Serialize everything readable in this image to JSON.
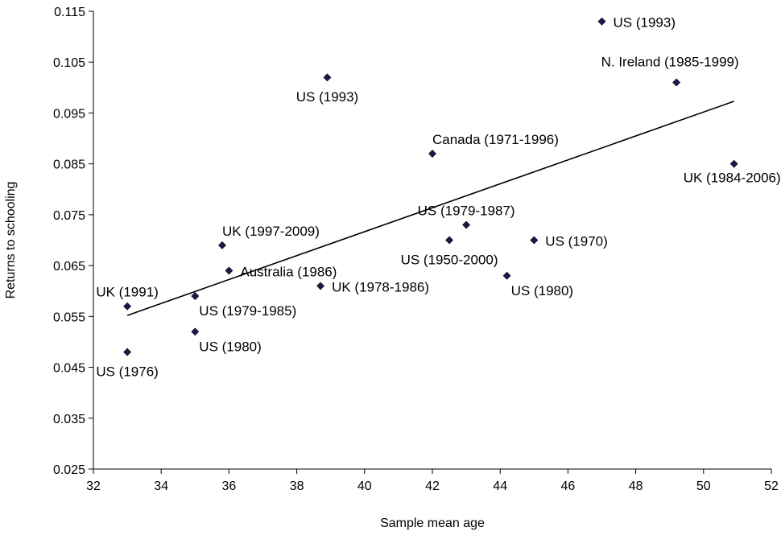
{
  "chart_data": {
    "type": "scatter",
    "xlabel": "Sample mean age",
    "ylabel": "Returns to schooling",
    "xlim": [
      32,
      52
    ],
    "ylim": [
      0.025,
      0.115
    ],
    "x_ticks": [
      32,
      34,
      36,
      38,
      40,
      42,
      44,
      46,
      48,
      50,
      52
    ],
    "x_tick_labels": [
      "32",
      "34",
      "36",
      "38",
      "40",
      "42",
      "44",
      "46",
      "48",
      "50",
      "52"
    ],
    "y_ticks": [
      0.025,
      0.035,
      0.045,
      0.055,
      0.065,
      0.075,
      0.085,
      0.095,
      0.105,
      0.115
    ],
    "y_tick_labels": [
      "0.025",
      "0.035",
      "0.045",
      "0.055",
      "0.065",
      "0.075",
      "0.085",
      "0.095",
      "0.105",
      "0.115"
    ],
    "grid": false,
    "colors": {
      "marker": "#1a1a4e",
      "trendline": "#000000",
      "axis": "#000000"
    },
    "points": [
      {
        "label": "US (1993)",
        "x": 47.0,
        "y": 0.113,
        "label_pos": "right"
      },
      {
        "label": "N. Ireland (1985-1999)",
        "x": 49.2,
        "y": 0.101,
        "label_pos": "above-left"
      },
      {
        "label": "US (1993)",
        "x": 38.9,
        "y": 0.102,
        "label_pos": "below"
      },
      {
        "label": "Canada (1971-1996)",
        "x": 42.0,
        "y": 0.087,
        "label_pos": "above-right"
      },
      {
        "label": "UK (1984-2006)",
        "x": 50.9,
        "y": 0.085,
        "label_pos": "below-left"
      },
      {
        "label": "US (1979-1987)",
        "x": 43.0,
        "y": 0.073,
        "label_pos": "above"
      },
      {
        "label": "US (1950-2000)",
        "x": 42.5,
        "y": 0.07,
        "label_pos": "below"
      },
      {
        "label": "US (1970)",
        "x": 45.0,
        "y": 0.07,
        "label_pos": "right"
      },
      {
        "label": "UK (1997-2009)",
        "x": 35.8,
        "y": 0.069,
        "label_pos": "above-right"
      },
      {
        "label": "Australia (1986)",
        "x": 36.0,
        "y": 0.064,
        "label_pos": "right"
      },
      {
        "label": "US (1980)",
        "x": 44.2,
        "y": 0.063,
        "label_pos": "below-right"
      },
      {
        "label": "UK (1978-1986)",
        "x": 38.7,
        "y": 0.061,
        "label_pos": "right"
      },
      {
        "label": "UK (1991)",
        "x": 33.0,
        "y": 0.057,
        "label_pos": "above"
      },
      {
        "label": "US (1979-1985)",
        "x": 35.0,
        "y": 0.059,
        "label_pos": "below-right"
      },
      {
        "label": "US (1980)",
        "x": 35.0,
        "y": 0.052,
        "label_pos": "below-right"
      },
      {
        "label": "US (1976)",
        "x": 33.0,
        "y": 0.048,
        "label_pos": "below"
      }
    ],
    "trendline": {
      "x": [
        33.0,
        50.9
      ],
      "y": [
        0.0552,
        0.0973
      ]
    }
  }
}
